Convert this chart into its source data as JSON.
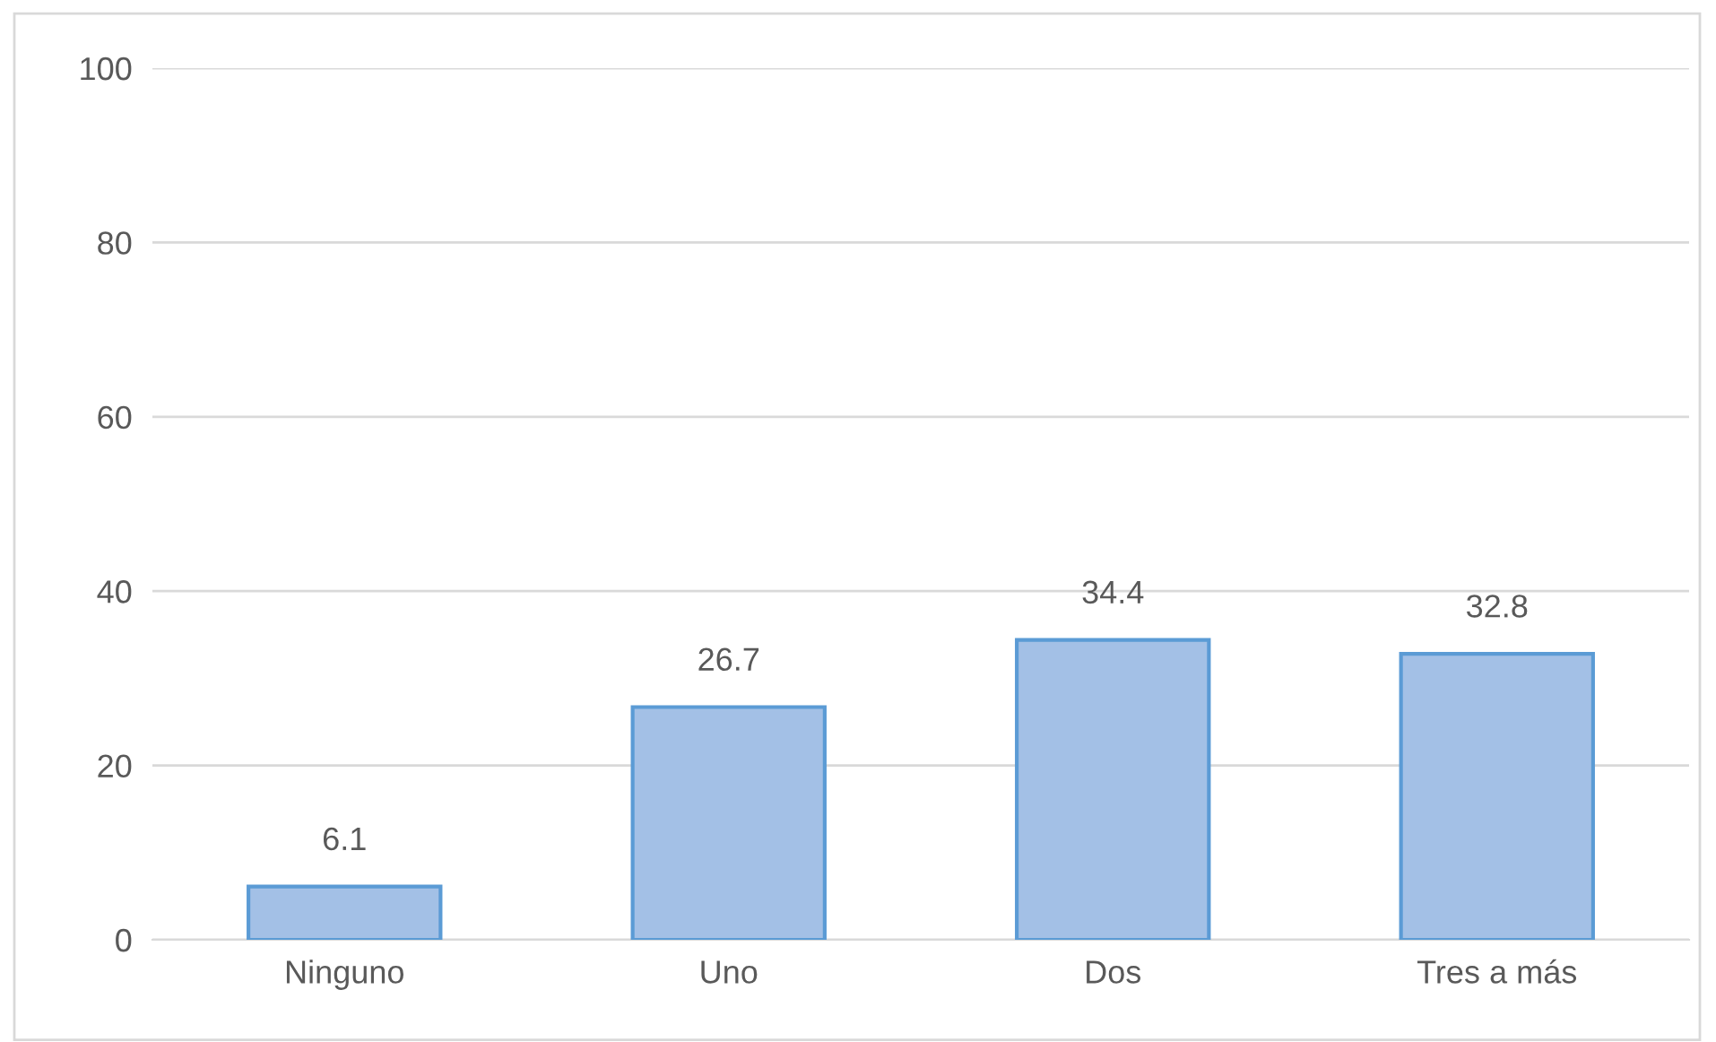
{
  "chart_data": {
    "type": "bar",
    "categories": [
      "Ninguno",
      "Uno",
      "Dos",
      "Tres a más"
    ],
    "values": [
      6.1,
      26.7,
      34.4,
      32.8
    ],
    "color": "#a3c0e6",
    "ylim": [
      0,
      100
    ],
    "yticks": [
      0,
      20,
      40,
      60,
      80,
      100
    ],
    "grid": "y",
    "data_labels": true
  }
}
